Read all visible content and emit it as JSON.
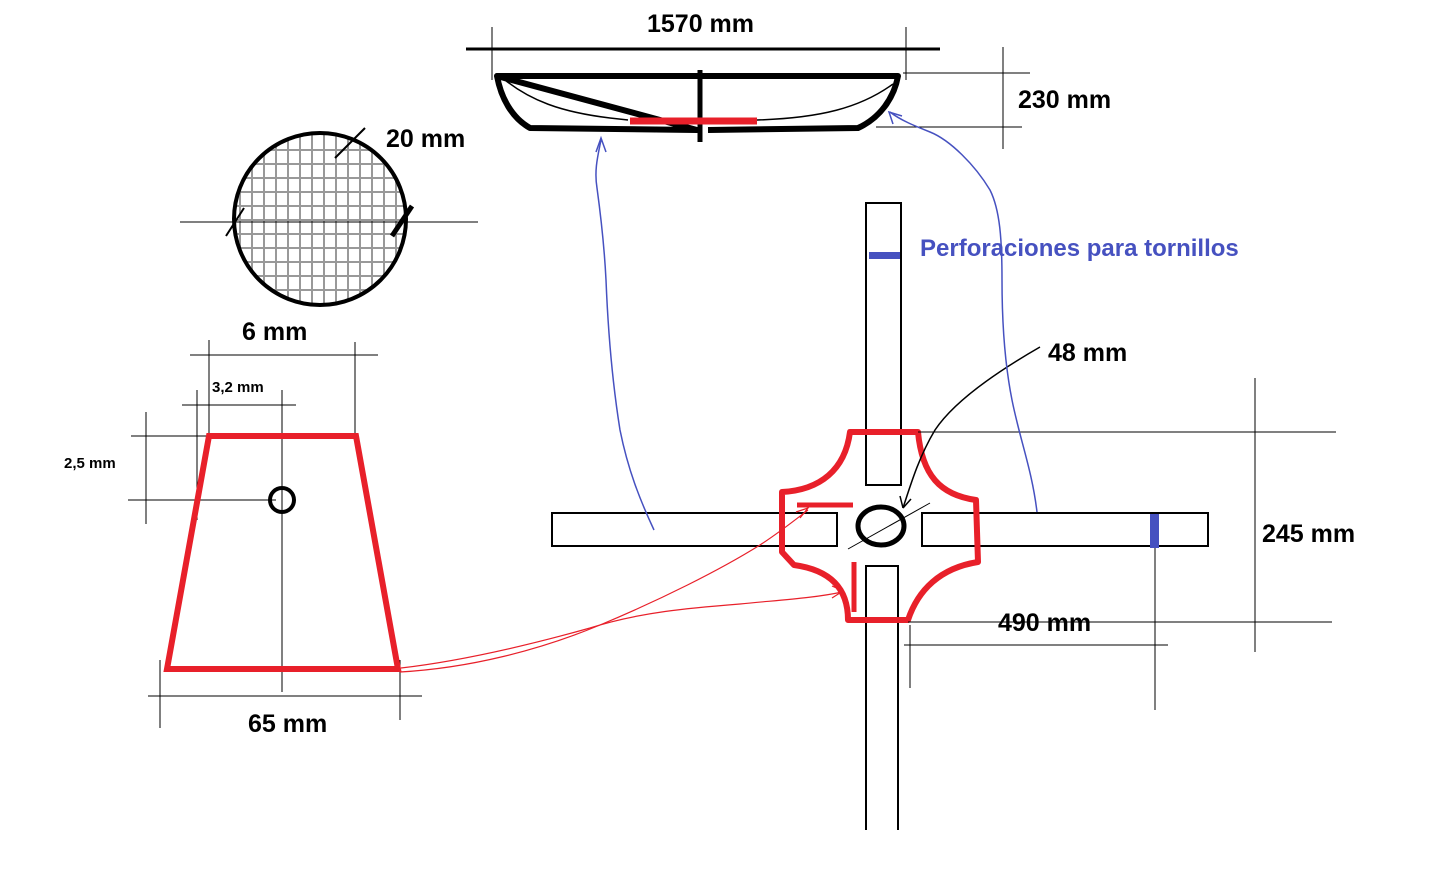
{
  "labels": {
    "top_width": "1570 mm",
    "top_height": "230 mm",
    "mesh_diameter": "20 mm",
    "trap_top": "6 mm",
    "hole_offset_x": "3,2 mm",
    "hole_offset_y": "2,5 mm",
    "trap_bottom": "65 mm",
    "screw_holes": "Perforaciones para tornillos",
    "center_hole": "48 mm",
    "arm_height": "245 mm",
    "arm_length": "490 mm"
  },
  "colors": {
    "outline": "#000000",
    "red_part": "#e8202a",
    "blue_annotation": "#4651c0",
    "mesh": "#999999"
  }
}
